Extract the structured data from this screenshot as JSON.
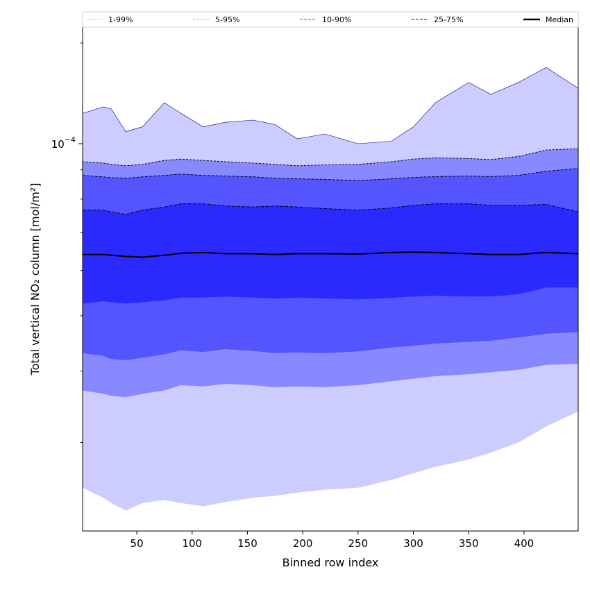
{
  "chart_data": {
    "type": "area",
    "xlabel": "Binned row index",
    "ylabel": "Total vertical NO₂ column [mol/m²]",
    "x_ticks": [
      50,
      100,
      150,
      200,
      250,
      300,
      350,
      400
    ],
    "y_tick_label_base": "10",
    "y_tick_label_exp": "−4",
    "y_tick_value": 0.0001,
    "yscale": "log",
    "xlim": [
      1,
      449
    ],
    "ylim": [
      2.1e-05,
      0.00016
    ],
    "grid": false,
    "legend_placement": "top",
    "colors": {
      "band_1_99": "#ccccff",
      "band_5_95": "#8888ff",
      "band_10_90": "#5555ff",
      "band_25_75": "#2a2aff",
      "median": "#000000",
      "p99_line": "#00008b"
    },
    "legend": [
      {
        "label": "1-99%",
        "style": "solid-thin",
        "color": "#d6d6ff"
      },
      {
        "label": "5-95%",
        "style": "dashed-thin",
        "color": "#aaaaff"
      },
      {
        "label": "10-90%",
        "style": "dashed",
        "color": "#8a8aff"
      },
      {
        "label": "25-75%",
        "style": "dashed",
        "color": "#5555ee"
      },
      {
        "label": "Median",
        "style": "solid-thick",
        "color": "#000000"
      }
    ],
    "x": [
      1,
      20,
      27,
      40,
      55,
      75,
      90,
      110,
      130,
      155,
      175,
      195,
      220,
      250,
      280,
      300,
      320,
      350,
      370,
      395,
      420,
      449
    ],
    "series": [
      {
        "name": "1-99%",
        "upper": [
          0.000113,
          0.000116,
          0.000115,
          0.000105,
          0.000107,
          0.000118,
          0.000113,
          0.000107,
          0.000109,
          0.00011,
          0.000108,
          0.000102,
          0.000104,
          0.0001,
          0.000101,
          0.000107,
          0.000118,
          0.000128,
          0.000122,
          0.000128,
          0.000136,
          0.000125
        ],
        "lower": [
          2.5e-05,
          2.4e-05,
          2.35e-05,
          2.28e-05,
          2.35e-05,
          2.38e-05,
          2.35e-05,
          2.32e-05,
          2.36e-05,
          2.4e-05,
          2.42e-05,
          2.45e-05,
          2.48e-05,
          2.5e-05,
          2.58e-05,
          2.65e-05,
          2.72e-05,
          2.8e-05,
          2.88e-05,
          3e-05,
          3.2e-05,
          3.4e-05
        ]
      },
      {
        "name": "5-95%",
        "upper": [
          9.3e-05,
          9.25e-05,
          9.2e-05,
          9.15e-05,
          9.2e-05,
          9.35e-05,
          9.4e-05,
          9.35e-05,
          9.3e-05,
          9.25e-05,
          9.2e-05,
          9.15e-05,
          9.18e-05,
          9.2e-05,
          9.3e-05,
          9.4e-05,
          9.45e-05,
          9.42e-05,
          9.38e-05,
          9.5e-05,
          9.75e-05,
          9.8e-05
        ],
        "lower": [
          3.7e-05,
          3.65e-05,
          3.62e-05,
          3.6e-05,
          3.65e-05,
          3.7e-05,
          3.78e-05,
          3.76e-05,
          3.8e-05,
          3.78e-05,
          3.75e-05,
          3.76e-05,
          3.75e-05,
          3.78e-05,
          3.84e-05,
          3.88e-05,
          3.92e-05,
          3.95e-05,
          3.98e-05,
          4.02e-05,
          4.1e-05,
          4.12e-05
        ]
      },
      {
        "name": "10-90%",
        "upper": [
          8.8e-05,
          8.75e-05,
          8.72e-05,
          8.7e-05,
          8.75e-05,
          8.8e-05,
          8.85e-05,
          8.8e-05,
          8.78e-05,
          8.75e-05,
          8.7e-05,
          8.68e-05,
          8.66e-05,
          8.62e-05,
          8.68e-05,
          8.73e-05,
          8.76e-05,
          8.78e-05,
          8.76e-05,
          8.8e-05,
          8.95e-05,
          9.05e-05
        ],
        "lower": [
          4.3e-05,
          4.25e-05,
          4.2e-05,
          4.18e-05,
          4.22e-05,
          4.28e-05,
          4.35e-05,
          4.32e-05,
          4.37e-05,
          4.34e-05,
          4.3e-05,
          4.31e-05,
          4.3e-05,
          4.33e-05,
          4.4e-05,
          4.43e-05,
          4.47e-05,
          4.5e-05,
          4.52e-05,
          4.58e-05,
          4.65e-05,
          4.68e-05
        ]
      },
      {
        "name": "25-75%",
        "upper": [
          7.65e-05,
          7.65e-05,
          7.6e-05,
          7.52e-05,
          7.65e-05,
          7.75e-05,
          7.85e-05,
          7.85e-05,
          7.78e-05,
          7.75e-05,
          7.78e-05,
          7.75e-05,
          7.7e-05,
          7.65e-05,
          7.72e-05,
          7.8e-05,
          7.85e-05,
          7.85e-05,
          7.8e-05,
          7.8e-05,
          7.83e-05,
          7.6e-05
        ],
        "lower": [
          5.25e-05,
          5.3e-05,
          5.28e-05,
          5.25e-05,
          5.28e-05,
          5.32e-05,
          5.38e-05,
          5.38e-05,
          5.4e-05,
          5.38e-05,
          5.36e-05,
          5.38e-05,
          5.36e-05,
          5.34e-05,
          5.37e-05,
          5.4e-05,
          5.42e-05,
          5.4e-05,
          5.4e-05,
          5.45e-05,
          5.6e-05,
          5.6e-05
        ]
      },
      {
        "name": "Median",
        "values": [
          6.4e-05,
          6.4e-05,
          6.38e-05,
          6.35e-05,
          6.33e-05,
          6.38e-05,
          6.43e-05,
          6.45e-05,
          6.42e-05,
          6.42e-05,
          6.4e-05,
          6.42e-05,
          6.42e-05,
          6.41e-05,
          6.45e-05,
          6.46e-05,
          6.45e-05,
          6.42e-05,
          6.4e-05,
          6.4e-05,
          6.45e-05,
          6.42e-05
        ]
      }
    ]
  }
}
